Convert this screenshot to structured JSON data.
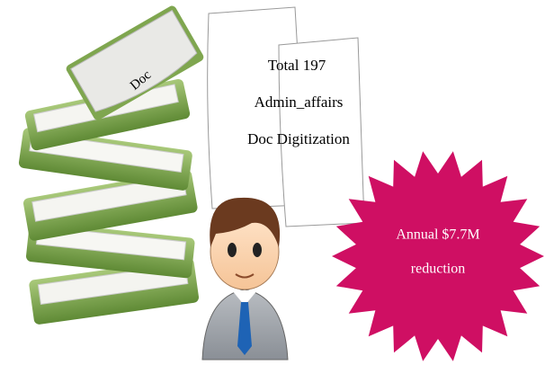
{
  "doc_stack": {
    "label": "Doc"
  },
  "papers": {
    "lines": [
      "Total 197",
      "Admin_affairs",
      "Doc Digitization"
    ]
  },
  "burst": {
    "lines": [
      "Annual $7.7M",
      "reduction"
    ]
  }
}
